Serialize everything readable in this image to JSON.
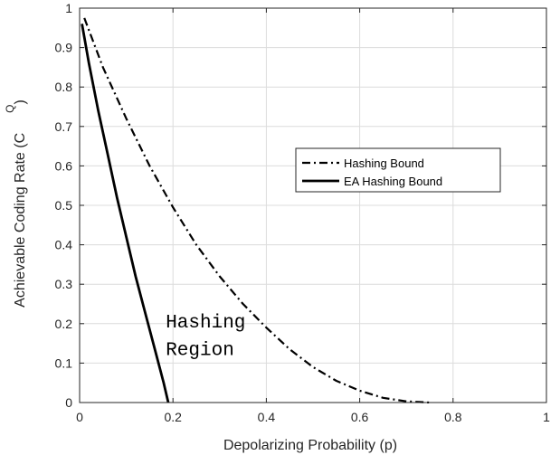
{
  "chart_data": {
    "type": "line",
    "title": "",
    "xlabel": "Depolarizing Probability (p)",
    "ylabel": "Achievable Coding Rate (C",
    "ylabel_subscript": "Q",
    "ylabel_close": ")",
    "xlim": [
      0,
      1
    ],
    "ylim": [
      0,
      1
    ],
    "xticks": [
      0,
      0.2,
      0.4,
      0.6,
      0.8,
      1
    ],
    "xtick_labels": [
      "0",
      "0.2",
      "0.4",
      "0.6",
      "0.8",
      "1"
    ],
    "yticks": [
      0,
      0.1,
      0.2,
      0.3,
      0.4,
      0.5,
      0.6,
      0.7,
      0.8,
      0.9,
      1
    ],
    "ytick_labels": [
      "0",
      "0.1",
      "0.2",
      "0.3",
      "0.4",
      "0.5",
      "0.6",
      "0.7",
      "0.8",
      "0.9",
      "1"
    ],
    "grid": true,
    "legend_position": "center-right",
    "series": [
      {
        "name": "Hashing Bound",
        "style": "dash-dot",
        "color": "#000000",
        "x": [
          0.01,
          0.05,
          0.1,
          0.15,
          0.2,
          0.25,
          0.3,
          0.35,
          0.4,
          0.45,
          0.5,
          0.55,
          0.6,
          0.65,
          0.7,
          0.75
        ],
        "y": [
          0.975,
          0.85,
          0.72,
          0.6,
          0.495,
          0.4,
          0.32,
          0.25,
          0.19,
          0.135,
          0.09,
          0.055,
          0.03,
          0.012,
          0.003,
          0.0
        ]
      },
      {
        "name": "EA Hashing Bound",
        "style": "solid",
        "color": "#000000",
        "x": [
          0.005,
          0.02,
          0.04,
          0.06,
          0.08,
          0.1,
          0.12,
          0.14,
          0.16,
          0.18,
          0.19
        ],
        "y": [
          0.96,
          0.86,
          0.74,
          0.63,
          0.52,
          0.42,
          0.32,
          0.23,
          0.14,
          0.05,
          0.0
        ]
      }
    ],
    "annotations": [
      {
        "text": "Hashing",
        "x": 0.2,
        "y": 0.19
      },
      {
        "text": "Region",
        "x": 0.2,
        "y": 0.12
      }
    ]
  }
}
